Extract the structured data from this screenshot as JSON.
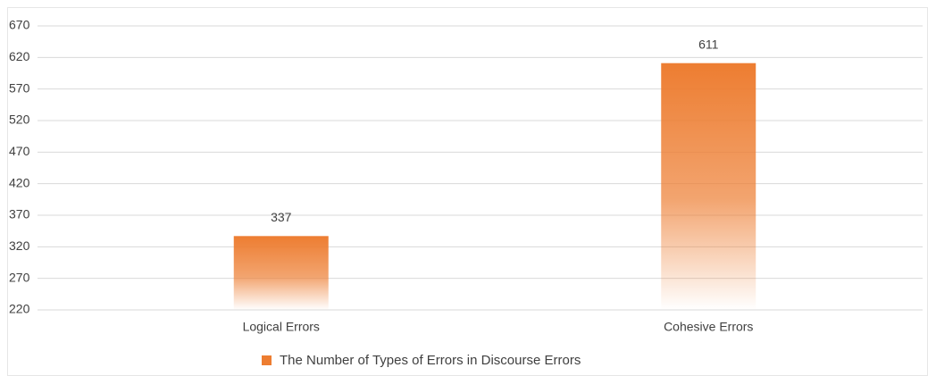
{
  "chart_data": {
    "type": "bar",
    "categories": [
      "Logical Errors",
      "Cohesive Errors"
    ],
    "series": [
      {
        "name": "The Number of Types of Errors in Discourse Errors",
        "color": "#ed7d31",
        "values": [
          337,
          611
        ]
      }
    ],
    "ylim": [
      220,
      670
    ],
    "yticks": [
      220,
      270,
      320,
      370,
      420,
      470,
      520,
      570,
      620,
      670
    ],
    "grid": true,
    "legend": "bottom"
  }
}
